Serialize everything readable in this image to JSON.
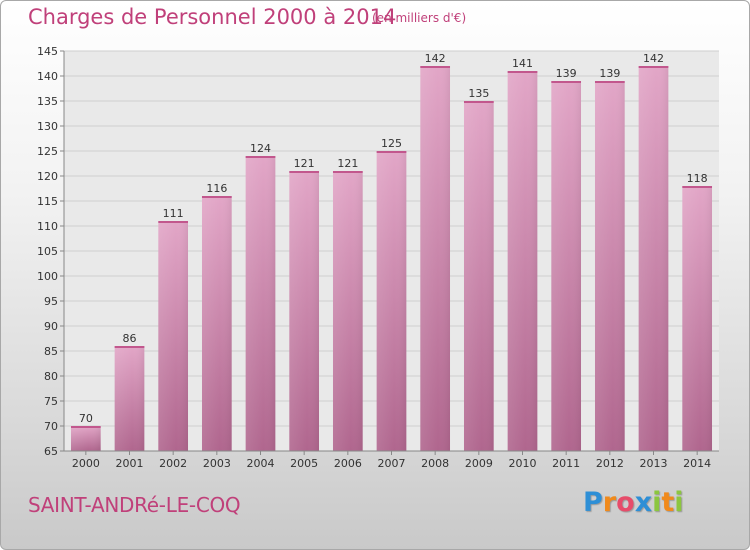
{
  "chart_data": {
    "type": "bar",
    "title": "Charges de Personnel 2000 à 2014",
    "subtitle": "(en milliers d'€)",
    "categories": [
      "2000",
      "2001",
      "2002",
      "2003",
      "2004",
      "2005",
      "2006",
      "2007",
      "2008",
      "2009",
      "2010",
      "2011",
      "2012",
      "2013",
      "2014"
    ],
    "values": [
      70,
      86,
      111,
      116,
      124,
      121,
      121,
      125,
      142,
      135,
      141,
      139,
      139,
      142,
      118
    ],
    "ylim": [
      65,
      145
    ],
    "yticks": [
      "65",
      "70",
      "75",
      "80",
      "85",
      "90",
      "95",
      "100",
      "105",
      "110",
      "115",
      "120",
      "125",
      "130",
      "135",
      "140",
      "145"
    ],
    "grid": true,
    "colors": {
      "bar": "#d88fb6",
      "title": "#c0407a"
    }
  },
  "footer": {
    "commune": "SAINT-ANDRé-LE-COQ",
    "logo_letters": [
      "P",
      "r",
      "o",
      "x",
      "i",
      "t",
      "i"
    ],
    "logo_colors": [
      "#2e8fd6",
      "#f08a1c",
      "#e74c6a",
      "#2e8fd6",
      "#8cc63f",
      "#f08a1c",
      "#8cc63f"
    ]
  }
}
